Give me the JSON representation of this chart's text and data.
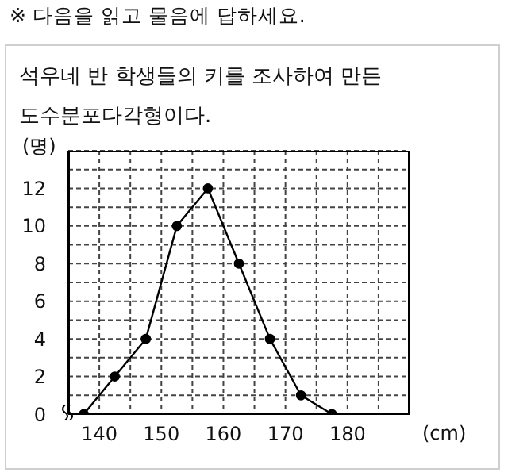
{
  "chart_data": {
    "type": "line",
    "title": "※ 다음을 읽고 물음에 답하세요.",
    "subtitle": "석우네 반 학생들의 키를 조사하여 만든 도수분포다각형이다.",
    "xlabel": "(cm)",
    "ylabel": "(명)",
    "x": [
      137.5,
      142.5,
      147.5,
      152.5,
      157.5,
      162.5,
      167.5,
      172.5,
      177.5
    ],
    "series": [
      {
        "color": "#000000",
        "values": [
          0,
          2,
          4,
          10,
          12,
          8,
          4,
          1,
          0
        ]
      }
    ],
    "xlim": [
      135,
      190
    ],
    "xticks": [
      {
        "value": 135,
        "label": null
      },
      140,
      {
        "value": 145,
        "label": null
      },
      150,
      {
        "value": 155,
        "label": null
      },
      160,
      {
        "value": 165,
        "label": null
      },
      170,
      {
        "value": 175,
        "label": null
      },
      180,
      {
        "value": 185,
        "label": null
      },
      {
        "value": 190,
        "label": null
      }
    ],
    "ylim": [
      0,
      14
    ],
    "yticks": [
      0,
      {
        "value": 1,
        "label": null
      },
      2,
      {
        "value": 3,
        "label": null
      },
      4,
      {
        "value": 5,
        "label": null
      },
      6,
      {
        "value": 7,
        "label": null
      },
      8,
      {
        "value": 9,
        "label": null
      },
      10,
      {
        "value": 11,
        "label": null
      },
      12,
      {
        "value": 13,
        "label": null
      },
      {
        "value": 14,
        "label": null
      }
    ],
    "grid": true,
    "marker": "circle",
    "line_style": "solid"
  }
}
